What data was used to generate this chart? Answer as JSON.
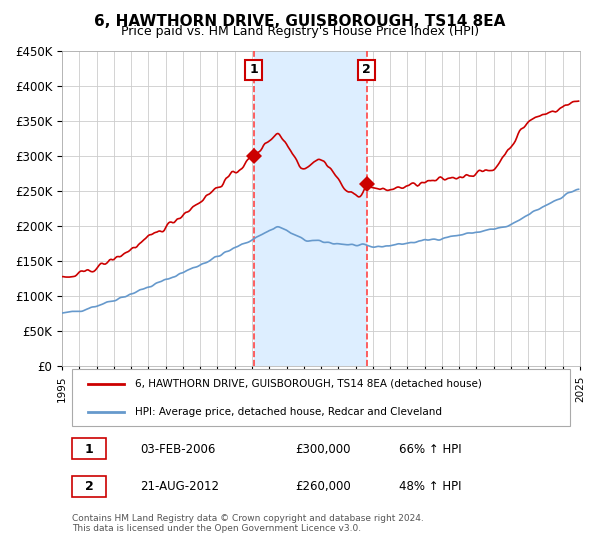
{
  "title": "6, HAWTHORN DRIVE, GUISBOROUGH, TS14 8EA",
  "subtitle": "Price paid vs. HM Land Registry's House Price Index (HPI)",
  "legend_line1": "6, HAWTHORN DRIVE, GUISBOROUGH, TS14 8EA (detached house)",
  "legend_line2": "HPI: Average price, detached house, Redcar and Cleveland",
  "annotation1_date": "03-FEB-2006",
  "annotation1_price": "£300,000",
  "annotation1_hpi": "66% ↑ HPI",
  "annotation2_date": "21-AUG-2012",
  "annotation2_price": "£260,000",
  "annotation2_hpi": "48% ↑ HPI",
  "sale1_x": 2006.09,
  "sale1_y": 300000,
  "sale2_x": 2012.64,
  "sale2_y": 260000,
  "shade_x1": 2006.09,
  "shade_x2": 2012.64,
  "vline_color": "#ff4444",
  "shade_color": "#ddeeff",
  "red_line_color": "#cc0000",
  "blue_line_color": "#6699cc",
  "background_color": "#ffffff",
  "grid_color": "#cccccc",
  "footer": "Contains HM Land Registry data © Crown copyright and database right 2024.\nThis data is licensed under the Open Government Licence v3.0.",
  "xmin": 1995,
  "xmax": 2025,
  "ymin": 0,
  "ymax": 450000,
  "yticks": [
    0,
    50000,
    100000,
    150000,
    200000,
    250000,
    300000,
    350000,
    400000,
    450000
  ]
}
